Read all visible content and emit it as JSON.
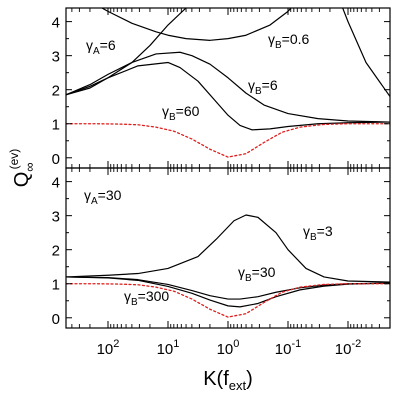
{
  "chart_data": [
    {
      "panel": "top",
      "type": "line",
      "ylabel_main": "Q",
      "ylabel_sub": "∞",
      "ylabel_sup": "(ev)",
      "ylim": [
        -0.3,
        4.4
      ],
      "yticks": [
        0,
        1,
        2,
        3,
        4
      ],
      "xlim": [
        2.7,
        -2.7
      ],
      "x_log_scale": true,
      "x_reversed": true,
      "annotations": [
        {
          "main": "γ",
          "sub": "A",
          "text": "=6"
        },
        {
          "main": "γ",
          "sub": "B",
          "text": "=0.6"
        },
        {
          "main": "γ",
          "sub": "B",
          "text": "=6"
        },
        {
          "main": "γ",
          "sub": "B",
          "text": "=60"
        }
      ],
      "series": [
        {
          "style": "solid",
          "color": "#000000",
          "x": [
            2.7,
            2.3,
            2.0,
            1.6,
            1.3,
            1.0,
            0.7,
            0.5,
            0.35
          ],
          "y": [
            1.85,
            2.05,
            2.35,
            2.8,
            3.3,
            3.9,
            4.4,
            4.9,
            5.3
          ]
        },
        {
          "style": "solid",
          "color": "#000000",
          "x": [
            2.7,
            2.3,
            2.0,
            1.6,
            1.2,
            1.0,
            0.7,
            0.3,
            0.0,
            -0.3,
            -0.7,
            -1.0,
            -1.3,
            -1.6,
            -2.0,
            -2.3,
            -2.7
          ],
          "y": [
            5.2,
            4.6,
            4.3,
            3.95,
            3.7,
            3.6,
            3.5,
            3.45,
            3.5,
            3.6,
            3.9,
            4.3,
            4.9,
            5.8,
            4.0,
            2.8,
            1.8
          ]
        },
        {
          "style": "solid",
          "color": "#000000",
          "x": [
            2.7,
            2.3,
            2.0,
            1.6,
            1.2,
            0.8,
            0.6,
            0.3,
            0.0,
            -0.3,
            -0.6,
            -1.0,
            -1.5,
            -2.0,
            -2.7
          ],
          "y": [
            1.85,
            2.15,
            2.45,
            2.8,
            3.05,
            3.1,
            3.0,
            2.75,
            2.35,
            1.9,
            1.55,
            1.3,
            1.15,
            1.08,
            1.05
          ]
        },
        {
          "style": "solid",
          "color": "#000000",
          "x": [
            2.7,
            2.3,
            2.0,
            1.5,
            1.0,
            0.8,
            0.5,
            0.2,
            0.0,
            -0.2,
            -0.4,
            -0.7,
            -1.0,
            -1.5,
            -2.0,
            -2.7
          ],
          "y": [
            1.85,
            2.1,
            2.35,
            2.7,
            2.8,
            2.65,
            2.25,
            1.65,
            1.25,
            0.95,
            0.82,
            0.85,
            0.92,
            1.0,
            1.03,
            1.05
          ]
        },
        {
          "style": "dotted",
          "color": "#e02020",
          "x": [
            2.7,
            2.2,
            1.8,
            1.5,
            1.2,
            0.9,
            0.6,
            0.3,
            0.0,
            -0.3,
            -0.6,
            -0.9,
            -1.2,
            -1.6,
            -2.0,
            -2.7
          ],
          "y": [
            1.0,
            1.0,
            0.99,
            0.97,
            0.9,
            0.78,
            0.55,
            0.25,
            0.02,
            0.12,
            0.45,
            0.75,
            0.9,
            0.98,
            1.0,
            1.0
          ]
        }
      ]
    },
    {
      "panel": "bottom",
      "type": "line",
      "ylim": [
        -0.3,
        4.4
      ],
      "yticks": [
        0,
        1,
        2,
        3,
        4
      ],
      "xlim": [
        2.7,
        -2.7
      ],
      "x_log_scale": true,
      "x_reversed": true,
      "xlabel_main": "K(f",
      "xlabel_sub": "ext",
      "xlabel_end": ")",
      "xticks": [
        {
          "value": 2,
          "base": "10",
          "exp": "2"
        },
        {
          "value": 1,
          "base": "10",
          "exp": "1"
        },
        {
          "value": 0,
          "base": "10",
          "exp": "0"
        },
        {
          "value": -1,
          "base": "10",
          "exp": "-1"
        },
        {
          "value": -2,
          "base": "10",
          "exp": "-2"
        }
      ],
      "annotations": [
        {
          "main": "γ",
          "sub": "A",
          "text": "=30"
        },
        {
          "main": "γ",
          "sub": "B",
          "text": "=3"
        },
        {
          "main": "γ",
          "sub": "B",
          "text": "=30"
        },
        {
          "main": "γ",
          "sub": "B",
          "text": "=300"
        }
      ],
      "series": [
        {
          "style": "solid",
          "color": "#000000",
          "x": [
            2.7,
            2.0,
            1.5,
            1.0,
            0.5,
            0.2,
            -0.1,
            -0.3,
            -0.5,
            -0.8,
            -1.0,
            -1.3,
            -1.6,
            -2.0,
            -2.7
          ],
          "y": [
            1.2,
            1.25,
            1.3,
            1.45,
            1.8,
            2.3,
            2.85,
            3.02,
            2.95,
            2.5,
            2.0,
            1.45,
            1.2,
            1.08,
            1.05
          ]
        },
        {
          "style": "solid",
          "color": "#000000",
          "x": [
            2.7,
            2.0,
            1.5,
            1.0,
            0.6,
            0.3,
            0.0,
            -0.2,
            -0.5,
            -0.8,
            -1.2,
            -1.6,
            -2.0,
            -2.7
          ],
          "y": [
            1.2,
            1.18,
            1.12,
            0.98,
            0.8,
            0.65,
            0.55,
            0.55,
            0.62,
            0.75,
            0.88,
            0.96,
            1.0,
            1.02
          ]
        },
        {
          "style": "solid",
          "color": "#000000",
          "x": [
            2.7,
            2.0,
            1.5,
            1.0,
            0.6,
            0.3,
            0.0,
            -0.2,
            -0.5,
            -0.8,
            -1.2,
            -1.6,
            -2.0,
            -2.7
          ],
          "y": [
            1.2,
            1.17,
            1.1,
            0.92,
            0.72,
            0.52,
            0.35,
            0.32,
            0.42,
            0.62,
            0.82,
            0.93,
            0.99,
            1.02
          ]
        },
        {
          "style": "dotted",
          "color": "#e02020",
          "x": [
            2.7,
            2.2,
            1.8,
            1.5,
            1.2,
            0.9,
            0.6,
            0.3,
            0.0,
            -0.3,
            -0.6,
            -0.9,
            -1.2,
            -1.6,
            -2.0,
            -2.7
          ],
          "y": [
            1.0,
            1.0,
            0.99,
            0.97,
            0.9,
            0.78,
            0.55,
            0.25,
            0.02,
            0.12,
            0.45,
            0.75,
            0.9,
            0.98,
            1.0,
            1.0
          ]
        }
      ]
    }
  ]
}
